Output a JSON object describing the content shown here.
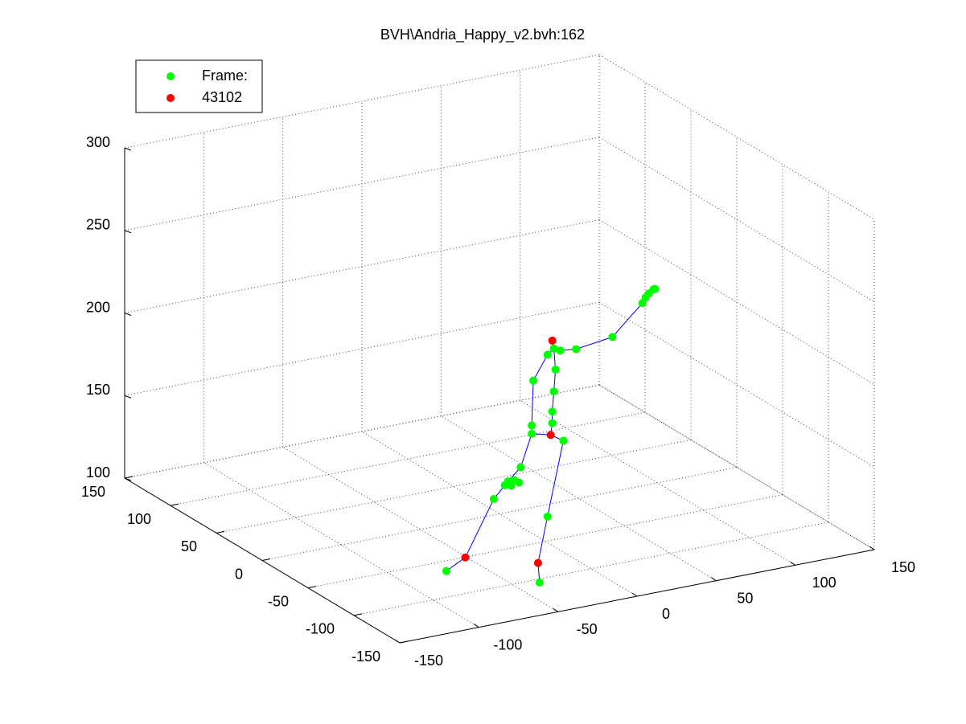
{
  "chart_data": {
    "type": "scatter3d",
    "title": "BVH\\Andria_Happy_v2.bvh:162",
    "xlim": [
      -150,
      150
    ],
    "ylim": [
      -150,
      150
    ],
    "zlim": [
      100,
      300
    ],
    "xticks": [
      -150,
      -100,
      -50,
      0,
      50,
      100,
      150
    ],
    "yticks": [
      -150,
      -100,
      -50,
      0,
      50,
      100,
      150
    ],
    "zticks": [
      100,
      150,
      200,
      250,
      300
    ],
    "grid": true,
    "legend": "upper left",
    "line": {
      "color": "#0000ff",
      "x": [
        -80,
        -68,
        -50,
        -41,
        -33,
        -26,
        -14,
        -6,
        -16,
        -22,
        -21,
        null,
        -14,
        -13,
        -13,
        -12,
        -11,
        -12,
        -13,
        null,
        -12,
        -16,
        -25,
        -26,
        null,
        -12,
        -8,
        2,
        25,
        44,
        48,
        52
      ],
      "y": [
        -80,
        -80,
        -80,
        -80,
        -80,
        -80,
        -80,
        -80,
        -80,
        -80,
        -80,
        null,
        -80,
        -80,
        -80,
        -80,
        -80,
        -80,
        -80,
        null,
        -80,
        -80,
        -80,
        -80,
        null,
        -80,
        -80,
        -80,
        -80,
        -80,
        -80,
        -80
      ],
      "z": [
        107,
        113,
        145,
        154,
        161,
        180,
        177,
        172,
        128,
        101,
        89,
        null,
        177,
        184,
        191,
        203,
        216,
        229,
        234,
        null,
        229,
        226,
        212,
        185,
        null,
        229,
        227,
        226,
        229,
        246,
        251,
        253
      ]
    },
    "series": [
      {
        "name": "Frame:",
        "color": "#00ff00",
        "x": [
          -80,
          -50,
          -41,
          -39,
          -37,
          -34,
          -43,
          -33,
          -26,
          -26,
          -25,
          -16,
          -12,
          -8,
          2,
          25,
          44,
          46,
          48,
          51,
          52,
          -12,
          -13,
          -13,
          -6,
          -16,
          -21,
          -11
        ],
        "y": [
          -80,
          -80,
          -80,
          -80,
          -80,
          -80,
          -80,
          -80,
          -80,
          -80,
          -80,
          -80,
          -80,
          -80,
          -80,
          -80,
          -80,
          -80,
          -80,
          -80,
          -80,
          -80,
          -80,
          -80,
          -80,
          -80,
          -80,
          -80
        ],
        "z": [
          107,
          145,
          154,
          151,
          154,
          152,
          152,
          161,
          180,
          185,
          212,
          226,
          229,
          227,
          226,
          229,
          246,
          249,
          251,
          253,
          253,
          203,
          191,
          184,
          172,
          128,
          89,
          216
        ]
      },
      {
        "name": "43102",
        "color": "#ff0000",
        "x": [
          -68,
          -14,
          -22,
          -13
        ],
        "y": [
          -80,
          -80,
          -80,
          -80
        ],
        "z": [
          113,
          177,
          101,
          234
        ]
      }
    ]
  }
}
